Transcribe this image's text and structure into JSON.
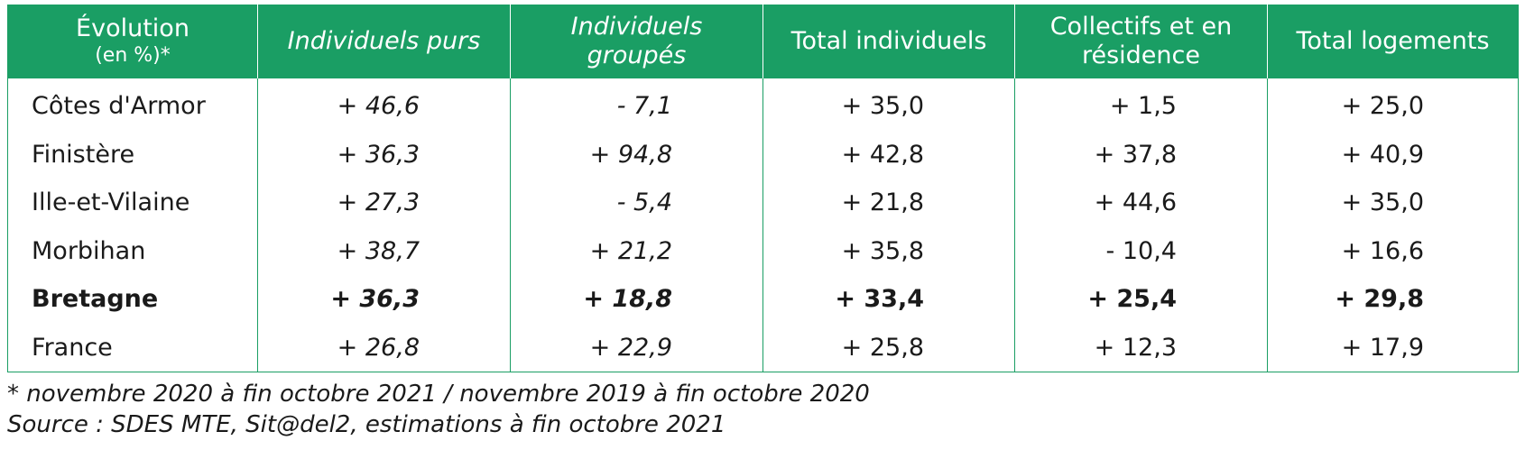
{
  "table": {
    "headers": [
      {
        "line1": "Évolution",
        "line2": "(en %)*"
      },
      {
        "line1": "Individuels purs",
        "line2": ""
      },
      {
        "line1": "Individuels",
        "line2": "groupés"
      },
      {
        "line1": "Total individuels",
        "line2": ""
      },
      {
        "line1": "Collectifs et en",
        "line2": "résidence"
      },
      {
        "line1": "Total logements",
        "line2": ""
      }
    ],
    "rows": [
      {
        "label": "Côtes d'Armor",
        "values": [
          "+ 46,6",
          "- 7,1",
          "+ 35,0",
          "+ 1,5",
          "+ 25,0"
        ]
      },
      {
        "label": "Finistère",
        "values": [
          "+ 36,3",
          "+ 94,8",
          "+ 42,8",
          "+ 37,8",
          "+ 40,9"
        ]
      },
      {
        "label": "Ille-et-Vilaine",
        "values": [
          "+ 27,3",
          "- 5,4",
          "+ 21,8",
          "+ 44,6",
          "+ 35,0"
        ]
      },
      {
        "label": "Morbihan",
        "values": [
          "+ 38,7",
          "+ 21,2",
          "+ 35,8",
          "- 10,4",
          "+ 16,6"
        ]
      },
      {
        "label": "Bretagne",
        "values": [
          "+ 36,3",
          "+ 18,8",
          "+ 33,4",
          "+ 25,4",
          "+ 29,8"
        ]
      },
      {
        "label": "France",
        "values": [
          "+ 26,8",
          "+ 22,9",
          "+ 25,8",
          "+ 12,3",
          "+ 17,9"
        ]
      }
    ]
  },
  "notes": {
    "footnote": "* novembre 2020 à fin octobre 2021 / novembre 2019 à fin octobre 2020",
    "source": "Source : SDES MTE, Sit@del2, estimations à fin octobre 2021"
  },
  "colors": {
    "header_bg": "#1a9e64",
    "header_text": "#ffffff",
    "border": "#1a9e64"
  }
}
